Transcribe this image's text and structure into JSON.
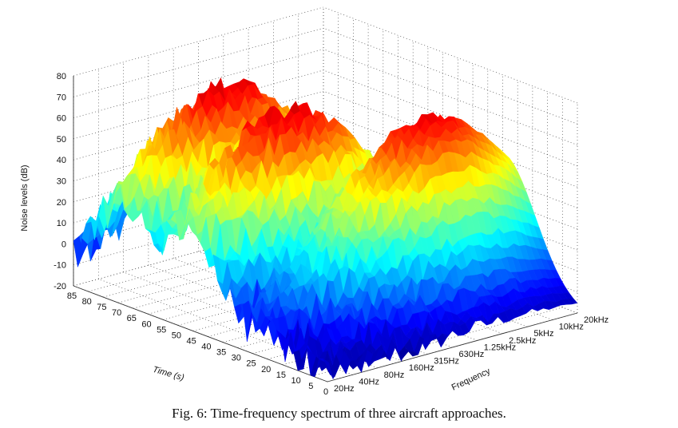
{
  "figure": {
    "caption": "Fig. 6: Time-frequency spectrum of three aircraft approaches."
  },
  "chart_data": {
    "type": "surface3d",
    "title": "",
    "zlabel": "Noise levels (dB)",
    "xlabel": "Time (s)",
    "ylabel": "Frequency",
    "zlim": [
      -20,
      80
    ],
    "z_ticks": [
      "-20",
      "-10",
      "0",
      "10",
      "20",
      "30",
      "40",
      "50",
      "60",
      "70",
      "80"
    ],
    "time_lim": [
      0,
      85
    ],
    "time_ticks": [
      "85",
      "80",
      "75",
      "70",
      "65",
      "60",
      "55",
      "50",
      "45",
      "40",
      "35",
      "30",
      "25",
      "20",
      "15",
      "10",
      "5",
      "0"
    ],
    "frequency_ticks": [
      "20Hz",
      "40Hz",
      "80Hz",
      "160Hz",
      "315Hz",
      "630Hz",
      "1.25kHz",
      "2.5kHz",
      "5kHz",
      "10kHz",
      "20kHz"
    ],
    "grid": true,
    "colormap": [
      "#00008f",
      "#0000ff",
      "#0080ff",
      "#00ffff",
      "#80ff80",
      "#ffff00",
      "#ff8000",
      "#ff0000",
      "#800000"
    ],
    "approaches": [
      {
        "peak_time_s": 68,
        "peak_level_db": 70,
        "peak_frequency": "315Hz"
      },
      {
        "peak_time_s": 47,
        "peak_level_db": 70,
        "peak_frequency": "315Hz"
      },
      {
        "peak_time_s": 25,
        "peak_level_db": 69,
        "peak_frequency": "2.5kHz"
      }
    ]
  }
}
